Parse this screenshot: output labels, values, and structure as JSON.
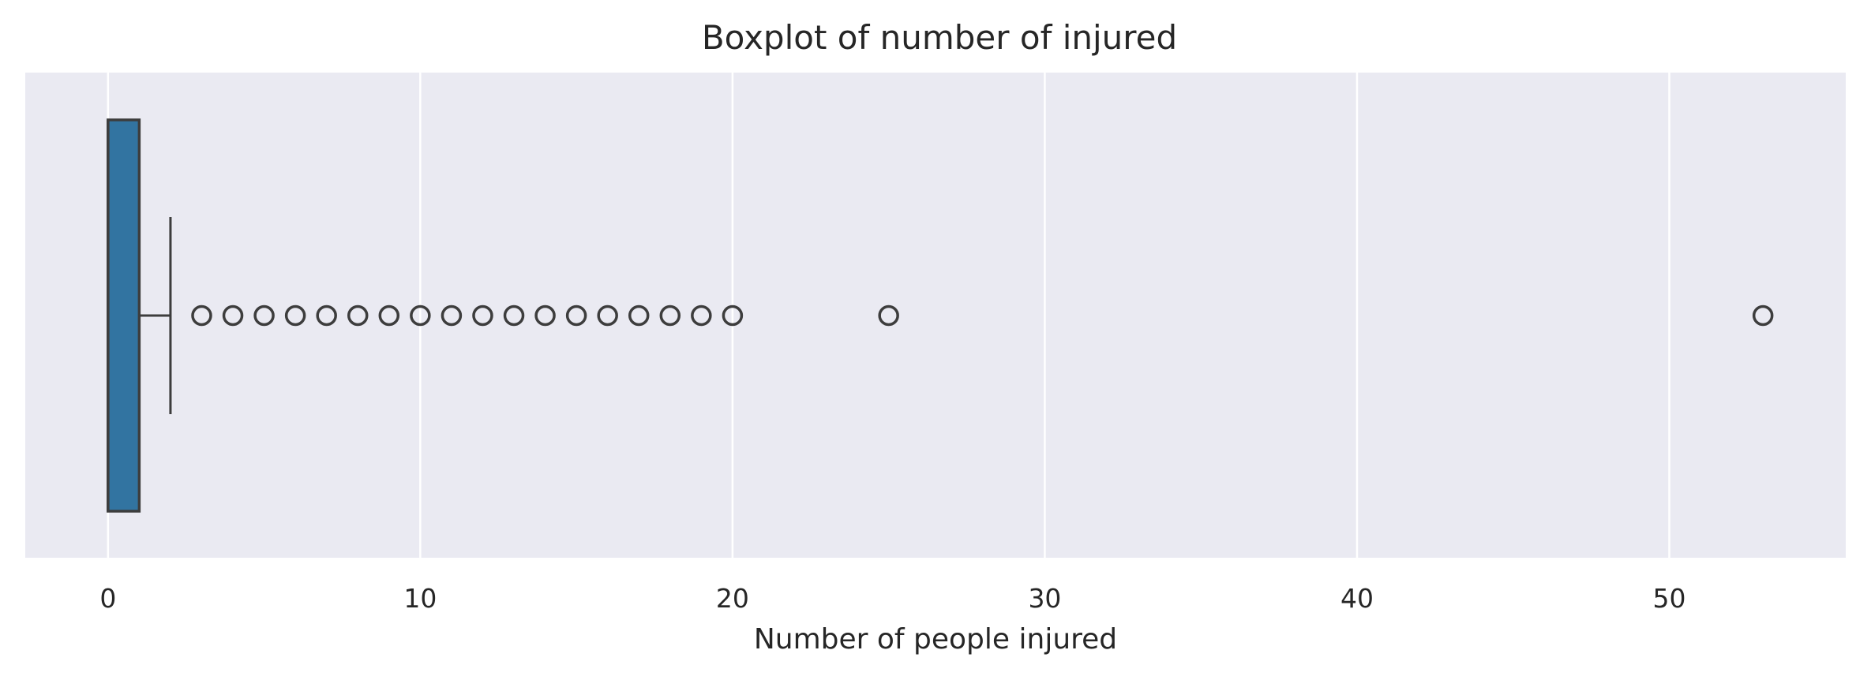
{
  "chart_data": {
    "type": "boxplot",
    "orientation": "horizontal",
    "title": "Boxplot of number of injured",
    "xlabel": "Number of people injured",
    "ylabel": "",
    "xlim": [
      -2.65,
      55.65
    ],
    "xticks": [
      0,
      10,
      20,
      30,
      40,
      50
    ],
    "xtick_labels": [
      "0",
      "10",
      "20",
      "30",
      "40",
      "50"
    ],
    "grid": true,
    "box": {
      "min": 0,
      "q1": 0,
      "median": 0,
      "q3": 1,
      "whisker_high": 2,
      "outliers": [
        3,
        4,
        5,
        6,
        7,
        8,
        9,
        10,
        11,
        12,
        13,
        14,
        15,
        16,
        17,
        18,
        19,
        20,
        25,
        53
      ]
    },
    "colors": {
      "box_fill": "#3274a1",
      "line": "#3d3d3d",
      "plot_background": "#eaeaf2",
      "grid": "#ffffff"
    }
  }
}
